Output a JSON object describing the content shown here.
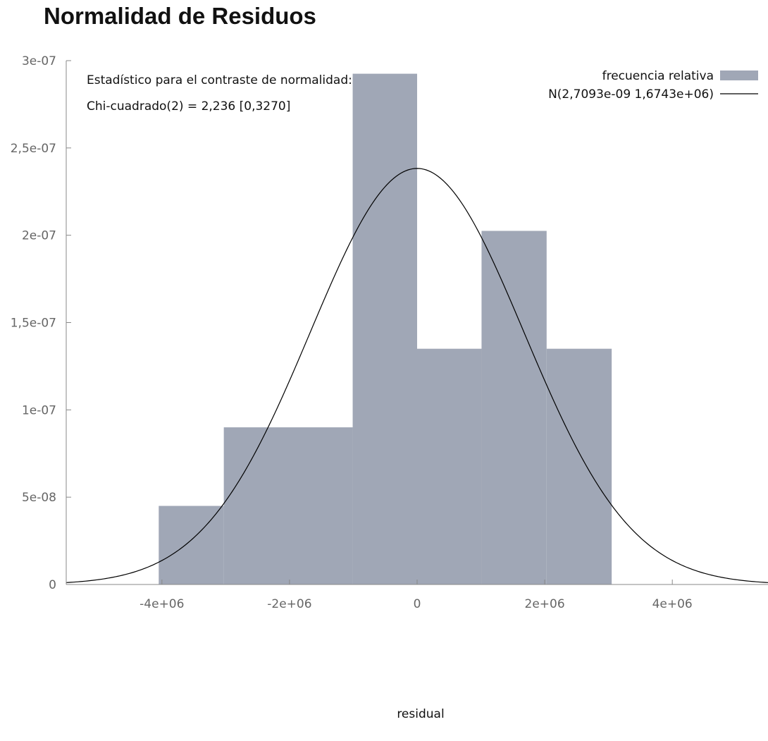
{
  "page": {
    "title": "Normalidad de Residuos"
  },
  "chart_data": {
    "type": "bar",
    "title": "",
    "xlabel": "residual",
    "ylabel": "",
    "xlim": [
      -5500000.0,
      5500000.0
    ],
    "ylim": [
      0,
      3e-07
    ],
    "x_ticks": [
      -4000000.0,
      -2000000.0,
      0,
      2000000.0,
      4000000.0
    ],
    "x_tick_labels": [
      "-4e+06",
      "-2e+06",
      "0",
      "2e+06",
      "4e+06"
    ],
    "y_ticks": [
      0,
      5e-08,
      1e-07,
      1.5e-07,
      2e-07,
      2.5e-07,
      3e-07
    ],
    "y_tick_labels": [
      "0",
      "5e-08",
      "1e-07",
      "1,5e-07",
      "2e-07",
      "2,5e-07",
      "3e-07"
    ],
    "histogram": {
      "name": "frecuencia relativa",
      "color": "#a0a7b6",
      "bins": [
        {
          "x0": -4050000.0,
          "x1": -3030000.0,
          "value": 4.5e-08
        },
        {
          "x0": -3030000.0,
          "x1": -1010000.0,
          "value": 9e-08
        },
        {
          "x0": -1010000.0,
          "x1": 0.0,
          "value": 2.925e-07
        },
        {
          "x0": 0.0,
          "x1": 1010000.0,
          "value": 1.35e-07
        },
        {
          "x0": 1010000.0,
          "x1": 2030000.0,
          "value": 2.025e-07
        },
        {
          "x0": 2030000.0,
          "x1": 3050000.0,
          "value": 1.35e-07
        }
      ]
    },
    "normal_curve": {
      "name": "N(2,7093e-09 1,6743e+06)",
      "mean": 2.7093e-09,
      "sd": 1674300.0,
      "color": "#000000"
    },
    "annotations": [
      "Estadístico para el contraste de normalidad:",
      "Chi-cuadrado(2) = 2,236 [0,3270]"
    ],
    "legend_position": "top-right",
    "grid": false
  }
}
